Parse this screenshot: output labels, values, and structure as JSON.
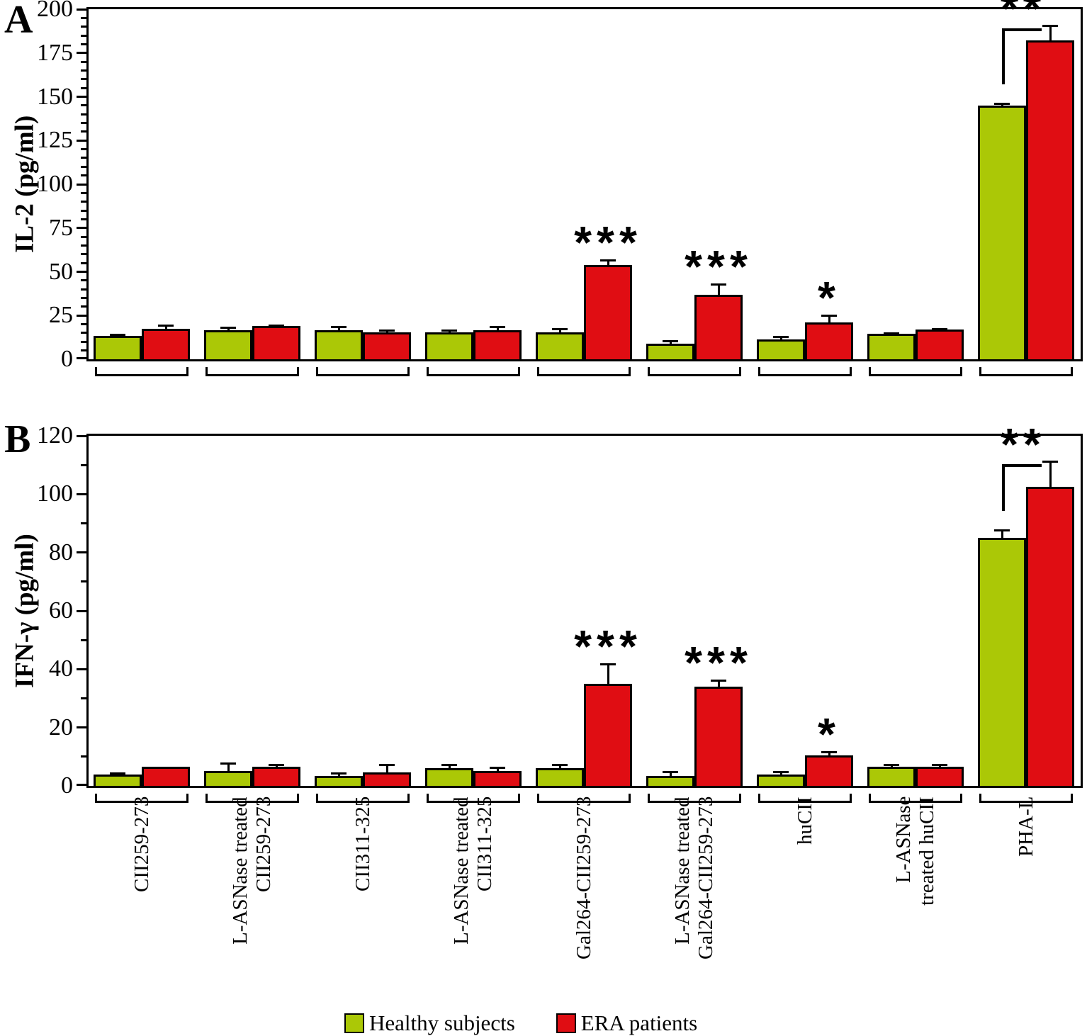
{
  "chart_data": [
    {
      "panel_label": "A",
      "type": "bar",
      "title": "",
      "xlabel": "",
      "ylabel": "IL-2 (pg/ml)",
      "ylim": [
        0,
        200
      ],
      "ytick_step": 25,
      "yminor_step": 5,
      "grid": false,
      "legend_position": "bottom",
      "categories": [
        "CII259-273",
        "L-ASNase treated\nCII259-273",
        "CII311-325",
        "L-ASNase treated\nCII311-325",
        "Gal264-CII259-273",
        "L-ASNase treated\nGal264-CII259-273",
        "huCII",
        "L-ASNase\ntreated huCII",
        "PHA-L"
      ],
      "series": [
        {
          "name": "Healthy subjects",
          "color": "#abc806",
          "values": [
            13.5,
            16.5,
            16.5,
            15.5,
            15.5,
            9,
            11.5,
            14.5,
            145
          ],
          "errors": [
            1,
            2,
            2.5,
            1.5,
            2.5,
            2,
            2,
            1,
            1.5
          ]
        },
        {
          "name": "ERA patients",
          "color": "#e00d13",
          "values": [
            17.5,
            19,
            15.5,
            16.5,
            54,
            37,
            21,
            17,
            182
          ],
          "errors": [
            2.5,
            1,
            1.5,
            2.5,
            3,
            6.5,
            4.5,
            1,
            9
          ]
        }
      ],
      "significance": [
        {
          "group_index": 4,
          "label": "***",
          "bracket": false
        },
        {
          "group_index": 5,
          "label": "***",
          "bracket": false
        },
        {
          "group_index": 6,
          "label": "*",
          "bracket": false
        },
        {
          "group_index": 8,
          "label": "**",
          "bracket": true
        }
      ]
    },
    {
      "panel_label": "B",
      "type": "bar",
      "title": "",
      "xlabel": "",
      "ylabel": "IFN-γ (pg/ml)",
      "ylim": [
        0,
        120
      ],
      "ytick_step": 20,
      "yminor_step": 10,
      "grid": false,
      "legend_position": "bottom",
      "categories": [
        "CII259-273",
        "L-ASNase treated\nCII259-273",
        "CII311-325",
        "L-ASNase treated\nCII311-325",
        "Gal264-CII259-273",
        "L-ASNase treated\nGal264-CII259-273",
        "huCII",
        "L-ASNase\ntreated huCII",
        "PHA-L"
      ],
      "series": [
        {
          "name": "Healthy subjects",
          "color": "#abc806",
          "values": [
            4,
            5,
            3.5,
            6,
            6,
            3.5,
            4,
            6.5,
            85
          ],
          "errors": [
            0.5,
            3,
            1,
            1.5,
            1.5,
            1.5,
            1,
            1,
            3
          ]
        },
        {
          "name": "ERA patients",
          "color": "#e00d13",
          "values": [
            6.5,
            6.5,
            4.5,
            5,
            35,
            34,
            10.5,
            6.5,
            102.5
          ],
          "errors": [
            0,
            1,
            3,
            1.5,
            7,
            2.5,
            1.5,
            1,
            9
          ]
        }
      ],
      "significance": [
        {
          "group_index": 4,
          "label": "***",
          "bracket": false
        },
        {
          "group_index": 5,
          "label": "***",
          "bracket": false
        },
        {
          "group_index": 6,
          "label": "*",
          "bracket": false
        },
        {
          "group_index": 8,
          "label": "**",
          "bracket": true
        }
      ]
    }
  ],
  "legend": {
    "items": [
      {
        "label": "Healthy subjects",
        "color": "#abc806"
      },
      {
        "label": "ERA patients",
        "color": "#e00d13"
      }
    ]
  }
}
